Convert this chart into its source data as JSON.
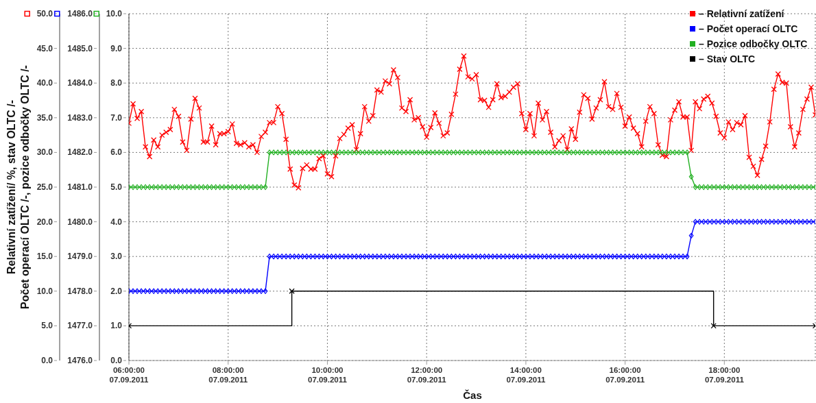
{
  "chart_data": {
    "type": "line",
    "xlabel": "Čas",
    "ylabel": "Relativní zatížení/ %, stav OLTC /-\nPočet operací OLTC /-, pozice odbočky OLTC /-",
    "x": [
      "2011-09-07T06:00",
      "2011-09-07T06:05",
      "2011-09-07T06:10",
      "2011-09-07T06:15",
      "2011-09-07T06:20",
      "2011-09-07T06:25",
      "2011-09-07T06:30",
      "2011-09-07T06:35",
      "2011-09-07T06:40",
      "2011-09-07T06:45",
      "2011-09-07T06:50",
      "2011-09-07T06:55",
      "2011-09-07T07:00",
      "2011-09-07T07:05",
      "2011-09-07T07:10",
      "2011-09-07T07:15",
      "2011-09-07T07:20",
      "2011-09-07T07:25",
      "2011-09-07T07:30",
      "2011-09-07T07:35",
      "2011-09-07T07:40",
      "2011-09-07T07:45",
      "2011-09-07T07:50",
      "2011-09-07T07:55",
      "2011-09-07T08:00",
      "2011-09-07T08:05",
      "2011-09-07T08:10",
      "2011-09-07T08:15",
      "2011-09-07T08:20",
      "2011-09-07T08:25",
      "2011-09-07T08:30",
      "2011-09-07T08:35",
      "2011-09-07T08:40",
      "2011-09-07T08:45",
      "2011-09-07T08:50",
      "2011-09-07T08:55",
      "2011-09-07T09:00",
      "2011-09-07T09:05",
      "2011-09-07T09:10",
      "2011-09-07T09:15",
      "2011-09-07T09:20",
      "2011-09-07T09:25",
      "2011-09-07T09:30",
      "2011-09-07T09:35",
      "2011-09-07T09:40",
      "2011-09-07T09:45",
      "2011-09-07T09:50",
      "2011-09-07T09:55",
      "2011-09-07T10:00",
      "2011-09-07T10:05",
      "2011-09-07T10:10",
      "2011-09-07T10:15",
      "2011-09-07T10:20",
      "2011-09-07T10:25",
      "2011-09-07T10:30",
      "2011-09-07T10:35",
      "2011-09-07T10:40",
      "2011-09-07T10:45",
      "2011-09-07T10:50",
      "2011-09-07T10:55",
      "2011-09-07T11:00",
      "2011-09-07T11:05",
      "2011-09-07T11:10",
      "2011-09-07T11:15",
      "2011-09-07T11:20",
      "2011-09-07T11:25",
      "2011-09-07T11:30",
      "2011-09-07T11:35",
      "2011-09-07T11:40",
      "2011-09-07T11:45",
      "2011-09-07T11:50",
      "2011-09-07T11:55",
      "2011-09-07T12:00",
      "2011-09-07T12:05",
      "2011-09-07T12:10",
      "2011-09-07T12:15",
      "2011-09-07T12:20",
      "2011-09-07T12:25",
      "2011-09-07T12:30",
      "2011-09-07T12:35",
      "2011-09-07T12:40",
      "2011-09-07T12:45",
      "2011-09-07T12:50",
      "2011-09-07T12:55",
      "2011-09-07T13:00",
      "2011-09-07T13:05",
      "2011-09-07T13:10",
      "2011-09-07T13:15",
      "2011-09-07T13:20",
      "2011-09-07T13:25",
      "2011-09-07T13:30",
      "2011-09-07T13:35",
      "2011-09-07T13:40",
      "2011-09-07T13:45",
      "2011-09-07T13:50",
      "2011-09-07T13:55",
      "2011-09-07T14:00",
      "2011-09-07T14:05",
      "2011-09-07T14:10",
      "2011-09-07T14:15",
      "2011-09-07T14:20",
      "2011-09-07T14:25",
      "2011-09-07T14:30",
      "2011-09-07T14:35",
      "2011-09-07T14:40",
      "2011-09-07T14:45",
      "2011-09-07T14:50",
      "2011-09-07T14:55",
      "2011-09-07T15:00",
      "2011-09-07T15:05",
      "2011-09-07T15:10",
      "2011-09-07T15:15",
      "2011-09-07T15:20",
      "2011-09-07T15:25",
      "2011-09-07T15:30",
      "2011-09-07T15:35",
      "2011-09-07T15:40",
      "2011-09-07T15:45",
      "2011-09-07T15:50",
      "2011-09-07T15:55",
      "2011-09-07T16:00",
      "2011-09-07T16:05",
      "2011-09-07T16:10",
      "2011-09-07T16:15",
      "2011-09-07T16:20",
      "2011-09-07T16:25",
      "2011-09-07T16:30",
      "2011-09-07T16:35",
      "2011-09-07T16:40",
      "2011-09-07T16:45",
      "2011-09-07T16:50",
      "2011-09-07T16:55",
      "2011-09-07T17:00",
      "2011-09-07T17:05",
      "2011-09-07T17:10",
      "2011-09-07T17:15",
      "2011-09-07T17:20",
      "2011-09-07T17:25",
      "2011-09-07T17:30",
      "2011-09-07T17:35",
      "2011-09-07T17:40",
      "2011-09-07T17:45",
      "2011-09-07T17:50",
      "2011-09-07T17:55",
      "2011-09-07T18:00",
      "2011-09-07T18:05",
      "2011-09-07T18:10",
      "2011-09-07T18:15",
      "2011-09-07T18:20",
      "2011-09-07T18:25",
      "2011-09-07T18:30",
      "2011-09-07T18:35",
      "2011-09-07T18:40",
      "2011-09-07T18:45",
      "2011-09-07T18:50",
      "2011-09-07T18:55",
      "2011-09-07T19:00",
      "2011-09-07T19:05",
      "2011-09-07T19:10",
      "2011-09-07T19:15",
      "2011-09-07T19:20",
      "2011-09-07T19:25",
      "2011-09-07T19:30",
      "2011-09-07T19:35",
      "2011-09-07T19:40",
      "2011-09-07T19:45",
      "2011-09-07T19:50"
    ],
    "series": [
      {
        "name": "– Relativní zatížení",
        "color": "#ff0000",
        "marker": "cross",
        "values": [
          34.2,
          37.0,
          34.9,
          35.9,
          30.8,
          29.4,
          31.8,
          30.8,
          32.5,
          32.9,
          33.3,
          36.2,
          35.2,
          31.5,
          30.3,
          34.8,
          37.8,
          36.4,
          31.5,
          31.5,
          33.8,
          31.1,
          32.7,
          32.7,
          33.0,
          34.1,
          31.3,
          31.1,
          31.4,
          30.8,
          31.1,
          30.0,
          32.3,
          32.9,
          34.3,
          34.3,
          36.6,
          35.6,
          31.9,
          27.6,
          25.3,
          24.9,
          27.7,
          28.2,
          27.6,
          27.6,
          29.1,
          29.5,
          26.9,
          26.5,
          29.5,
          32.0,
          32.6,
          33.5,
          34.0,
          30.4,
          32.7,
          36.6,
          34.5,
          35.3,
          39.0,
          38.7,
          40.3,
          39.9,
          41.9,
          40.8,
          36.4,
          35.9,
          37.6,
          34.7,
          35.0,
          33.7,
          32.2,
          33.6,
          35.7,
          34.2,
          32.4,
          32.8,
          35.5,
          38.4,
          42.0,
          43.9,
          40.9,
          40.6,
          41.2,
          37.6,
          37.5,
          36.5,
          37.6,
          39.9,
          37.9,
          38.1,
          38.7,
          39.4,
          39.9,
          35.6,
          33.3,
          35.6,
          32.4,
          37.1,
          34.7,
          35.9,
          32.9,
          30.8,
          31.7,
          32.4,
          30.4,
          33.4,
          31.9,
          35.8,
          38.3,
          37.8,
          34.8,
          36.4,
          37.6,
          40.2,
          36.6,
          36.2,
          38.5,
          36.5,
          33.8,
          35.1,
          33.5,
          32.7,
          30.8,
          34.5,
          36.6,
          35.6,
          31.1,
          29.6,
          29.4,
          34.7,
          36.1,
          37.3,
          35.1,
          35.1,
          30.3,
          37.3,
          36.3,
          37.7,
          38.1,
          37.1,
          35.2,
          32.8,
          32.1,
          34.4,
          33.3,
          34.3,
          34.0,
          35.3,
          29.3,
          28.0,
          26.7,
          29.0,
          30.9,
          34.4,
          39.1,
          41.3,
          40.1,
          40.0,
          33.7,
          30.8,
          32.8,
          36.2,
          37.7,
          39.4,
          35.4
        ]
      },
      {
        "name": "– Počet operací OLTC",
        "color": "#0000ff",
        "marker": "diamond",
        "axis": "y2",
        "values": [
          1478,
          1478,
          1478,
          1478,
          1478,
          1478,
          1478,
          1478,
          1478,
          1478,
          1478,
          1478,
          1478,
          1478,
          1478,
          1478,
          1478,
          1478,
          1478,
          1478,
          1478,
          1478,
          1478,
          1478,
          1478,
          1478,
          1478,
          1478,
          1478,
          1478,
          1478,
          1478,
          1478,
          1478,
          1479,
          1479,
          1479,
          1479,
          1479,
          1479,
          1479,
          1479,
          1479,
          1479,
          1479,
          1479,
          1479,
          1479,
          1479,
          1479,
          1479,
          1479,
          1479,
          1479,
          1479,
          1479,
          1479,
          1479,
          1479,
          1479,
          1479,
          1479,
          1479,
          1479,
          1479,
          1479,
          1479,
          1479,
          1479,
          1479,
          1479,
          1479,
          1479,
          1479,
          1479,
          1479,
          1479,
          1479,
          1479,
          1479,
          1479,
          1479,
          1479,
          1479,
          1479,
          1479,
          1479,
          1479,
          1479,
          1479,
          1479,
          1479,
          1479,
          1479,
          1479,
          1479,
          1479,
          1479,
          1479,
          1479,
          1479,
          1479,
          1479,
          1479,
          1479,
          1479,
          1479,
          1479,
          1479,
          1479,
          1479,
          1479,
          1479,
          1479,
          1479,
          1479,
          1479,
          1479,
          1479,
          1479,
          1479,
          1479,
          1479,
          1479,
          1479,
          1479,
          1479,
          1479,
          1479,
          1479,
          1479,
          1479,
          1479,
          1479,
          1479,
          1479,
          1479.6,
          1480,
          1480,
          1480,
          1480,
          1480,
          1480,
          1480,
          1480,
          1480,
          1480,
          1480,
          1480,
          1480,
          1480,
          1480,
          1480,
          1480,
          1480,
          1480,
          1480,
          1480,
          1480,
          1480,
          1480,
          1480,
          1480,
          1480,
          1480,
          1480,
          1480
        ]
      },
      {
        "name": "– Pozice odbočky OLTC",
        "color": "#22b022",
        "marker": "diamond",
        "axis": "y3",
        "values": [
          5,
          5,
          5,
          5,
          5,
          5,
          5,
          5,
          5,
          5,
          5,
          5,
          5,
          5,
          5,
          5,
          5,
          5,
          5,
          5,
          5,
          5,
          5,
          5,
          5,
          5,
          5,
          5,
          5,
          5,
          5,
          5,
          5,
          5,
          6,
          6,
          6,
          6,
          6,
          6,
          6,
          6,
          6,
          6,
          6,
          6,
          6,
          6,
          6,
          6,
          6,
          6,
          6,
          6,
          6,
          6,
          6,
          6,
          6,
          6,
          6,
          6,
          6,
          6,
          6,
          6,
          6,
          6,
          6,
          6,
          6,
          6,
          6,
          6,
          6,
          6,
          6,
          6,
          6,
          6,
          6,
          6,
          6,
          6,
          6,
          6,
          6,
          6,
          6,
          6,
          6,
          6,
          6,
          6,
          6,
          6,
          6,
          6,
          6,
          6,
          6,
          6,
          6,
          6,
          6,
          6,
          6,
          6,
          6,
          6,
          6,
          6,
          6,
          6,
          6,
          6,
          6,
          6,
          6,
          6,
          6,
          6,
          6,
          6,
          6,
          6,
          6,
          6,
          6,
          6,
          6,
          6,
          6,
          6,
          6,
          6,
          5.3,
          5,
          5,
          5,
          5,
          5,
          5,
          5,
          5,
          5,
          5,
          5,
          5,
          5,
          5,
          5,
          5,
          5,
          5,
          5,
          5,
          5,
          5,
          5,
          5,
          5,
          5,
          5,
          5,
          5,
          5
        ]
      },
      {
        "name": "– Stav OLTC",
        "color": "#000000",
        "type": "step",
        "marker": "cross",
        "axis": "y3",
        "x": [
          "2011-09-07T06:00",
          "2011-09-07T09:17",
          "2011-09-07T17:47",
          "2011-09-07T19:50"
        ],
        "values": [
          1,
          2,
          1,
          1
        ]
      }
    ],
    "xlim": [
      "2011-09-07T06:00",
      "2011-09-07T19:50"
    ],
    "xticks": [
      {
        "value": "2011-09-07T06:00",
        "label": "06:00:00\n07.09.2011"
      },
      {
        "value": "2011-09-07T08:00",
        "label": "08:00:00\n07.09.2011"
      },
      {
        "value": "2011-09-07T10:00",
        "label": "10:00:00\n07.09.2011"
      },
      {
        "value": "2011-09-07T12:00",
        "label": "12:00:00\n07.09.2011"
      },
      {
        "value": "2011-09-07T14:00",
        "label": "14:00:00\n07.09.2011"
      },
      {
        "value": "2011-09-07T16:00",
        "label": "16:00:00\n07.09.2011"
      },
      {
        "value": "2011-09-07T18:00",
        "label": "18:00:00\n07.09.2011"
      }
    ],
    "ylim": [
      0,
      50
    ],
    "yticks": [
      {
        "value": 0,
        "label": "0.0"
      },
      {
        "value": 5,
        "label": "5.0"
      },
      {
        "value": 10,
        "label": "10.0"
      },
      {
        "value": 15,
        "label": "15.0"
      },
      {
        "value": 20,
        "label": "20.0"
      },
      {
        "value": 25,
        "label": "25.0"
      },
      {
        "value": 30,
        "label": "30.0"
      },
      {
        "value": 35,
        "label": "35.0"
      },
      {
        "value": 40,
        "label": "40.0"
      },
      {
        "value": 45,
        "label": "45.0"
      },
      {
        "value": 50,
        "label": "50.0"
      }
    ],
    "y2lim": [
      1476,
      1486
    ],
    "y2ticks": [
      {
        "value": 1476,
        "label": "1476.0"
      },
      {
        "value": 1477,
        "label": "1477.0"
      },
      {
        "value": 1478,
        "label": "1478.0"
      },
      {
        "value": 1479,
        "label": "1479.0"
      },
      {
        "value": 1480,
        "label": "1480.0"
      },
      {
        "value": 1481,
        "label": "1481.0"
      },
      {
        "value": 1482,
        "label": "1482.0"
      },
      {
        "value": 1483,
        "label": "1483.0"
      },
      {
        "value": 1484,
        "label": "1484.0"
      },
      {
        "value": 1485,
        "label": "1485.0"
      },
      {
        "value": 1486,
        "label": "1486.0"
      }
    ],
    "y3lim": [
      0,
      10
    ],
    "y3ticks": [
      {
        "value": 0,
        "label": "0.0"
      },
      {
        "value": 1,
        "label": "1.0"
      },
      {
        "value": 2,
        "label": "2.0"
      },
      {
        "value": 3,
        "label": "3.0"
      },
      {
        "value": 4,
        "label": "4.0"
      },
      {
        "value": 5,
        "label": "5.0"
      },
      {
        "value": 6,
        "label": "6.0"
      },
      {
        "value": 7,
        "label": "7.0"
      },
      {
        "value": 8,
        "label": "8.0"
      },
      {
        "value": 9,
        "label": "9.0"
      },
      {
        "value": 10,
        "label": "10.0"
      }
    ],
    "grid": true,
    "legend": "top right"
  }
}
